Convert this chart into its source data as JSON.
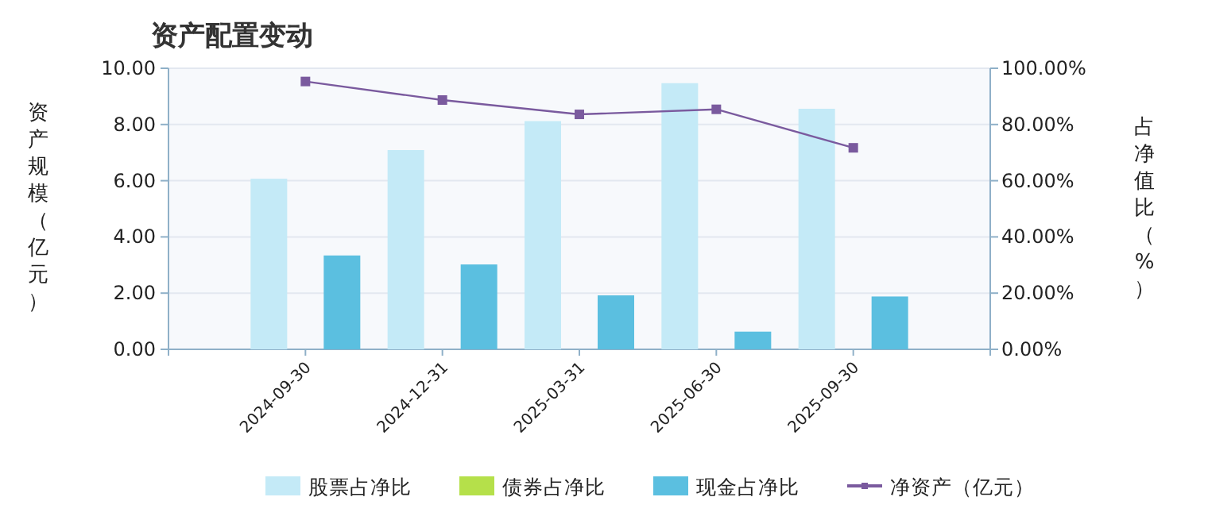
{
  "chart_data": {
    "type": "bar",
    "title": "资产配置变动",
    "ylabel": "资产规模（亿元）",
    "y2label": "占净值比（%）",
    "categories": [
      "2024-09-30",
      "2024-12-31",
      "2025-03-31",
      "2025-06-30",
      "2025-09-30"
    ],
    "series": [
      {
        "name": "股票占净比",
        "color": "#c4eaf7",
        "axis": "y2",
        "values": [
          60.7,
          70.9,
          81.2,
          94.7,
          85.6
        ]
      },
      {
        "name": "债券占净比",
        "color": "#b5e04a",
        "axis": "y2",
        "values": [
          0,
          0,
          0,
          0,
          0
        ]
      },
      {
        "name": "现金占净比",
        "color": "#5bbfe0",
        "axis": "y2",
        "values": [
          33.4,
          30.2,
          19.2,
          6.3,
          18.8
        ]
      },
      {
        "name": "净资产（亿元）",
        "type": "line",
        "color": "#7a5a9e",
        "axis": "y",
        "marker": "square",
        "values": [
          9.53,
          8.87,
          8.36,
          8.54,
          7.17
        ]
      }
    ],
    "ylim": [
      0,
      10
    ],
    "yticks": [
      {
        "value": 0,
        "label": "0.00"
      },
      {
        "value": 2,
        "label": "2.00"
      },
      {
        "value": 4,
        "label": "4.00"
      },
      {
        "value": 6,
        "label": "6.00"
      },
      {
        "value": 8,
        "label": "8.00"
      },
      {
        "value": 10,
        "label": "10.00"
      }
    ],
    "y2lim": [
      0,
      100
    ],
    "y2ticks": [
      {
        "value": 0,
        "label": "0.00%"
      },
      {
        "value": 20,
        "label": "20.00%"
      },
      {
        "value": 40,
        "label": "40.00%"
      },
      {
        "value": 60,
        "label": "60.00%"
      },
      {
        "value": 80,
        "label": "80.00%"
      },
      {
        "value": 100,
        "label": "100.00%"
      }
    ],
    "grid": "y",
    "legend": "bottom"
  }
}
